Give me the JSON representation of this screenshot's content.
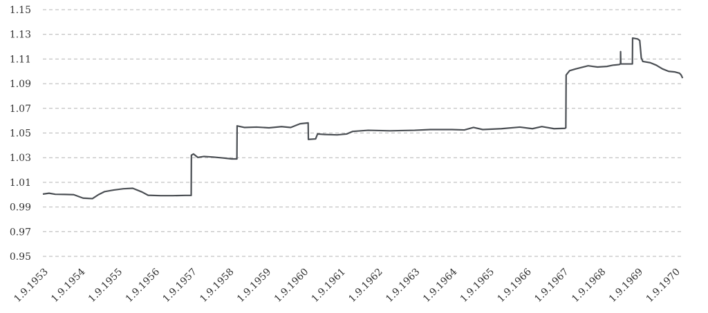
{
  "chart_data": {
    "type": "line",
    "title": "",
    "xlabel": "",
    "ylabel": "",
    "grid": "horizontal-dashed",
    "legend": "none",
    "ylim": [
      0.95,
      1.15
    ],
    "yticks": [
      "1.15",
      "1.13",
      "1.11",
      "1.09",
      "1.07",
      "1.05",
      "1.03",
      "1.01",
      "0.99",
      "0.97",
      "0.95"
    ],
    "xticks": [
      "1.9.1953",
      "1.9.1954",
      "1.9.1955",
      "1.9.1956",
      "1.9.1957",
      "1.9.1958",
      "1.9.1959",
      "1.9.1960",
      "1.9.1961",
      "1.9.1962",
      "1.9.1963",
      "1.9.1964",
      "1.9.1965",
      "1.9.1966",
      "1.9.1967",
      "1.9.1968",
      "1.9.1969",
      "1.9.1970"
    ],
    "xlim": [
      "1953-09-01",
      "1970-11-20"
    ],
    "series": [
      {
        "color": "#4a4e53",
        "points": [
          [
            "1953-09-01",
            1.0005
          ],
          [
            "1953-11-01",
            1.0012
          ],
          [
            "1954-01-01",
            1.0003
          ],
          [
            "1954-04-01",
            1.0002
          ],
          [
            "1954-07-01",
            1.0
          ],
          [
            "1954-10-01",
            0.9972
          ],
          [
            "1955-01-01",
            0.9968
          ],
          [
            "1955-03-01",
            1.0
          ],
          [
            "1955-05-01",
            1.0025
          ],
          [
            "1955-08-01",
            1.0038
          ],
          [
            "1955-11-01",
            1.0048
          ],
          [
            "1956-02-01",
            1.0052
          ],
          [
            "1956-05-01",
            1.0022
          ],
          [
            "1956-07-01",
            0.9995
          ],
          [
            "1956-11-01",
            0.9992
          ],
          [
            "1957-03-01",
            0.9992
          ],
          [
            "1957-07-01",
            0.9994
          ],
          [
            "1957-08-28",
            0.9994
          ],
          [
            "1957-08-30",
            1.032
          ],
          [
            "1957-09-20",
            1.033
          ],
          [
            "1957-11-01",
            1.0302
          ],
          [
            "1958-01-01",
            1.031
          ],
          [
            "1958-04-01",
            1.0305
          ],
          [
            "1958-07-01",
            1.0298
          ],
          [
            "1958-10-01",
            1.029
          ],
          [
            "1958-11-20",
            1.029
          ],
          [
            "1958-11-22",
            1.0558
          ],
          [
            "1959-02-01",
            1.0545
          ],
          [
            "1959-06-01",
            1.0548
          ],
          [
            "1959-10-01",
            1.0542
          ],
          [
            "1960-02-01",
            1.0552
          ],
          [
            "1960-05-01",
            1.0545
          ],
          [
            "1960-08-01",
            1.0575
          ],
          [
            "1960-10-20",
            1.0582
          ],
          [
            "1960-10-22",
            1.0448
          ],
          [
            "1961-01-01",
            1.0452
          ],
          [
            "1961-01-20",
            1.0492
          ],
          [
            "1961-04-01",
            1.0488
          ],
          [
            "1961-08-01",
            1.0485
          ],
          [
            "1961-11-01",
            1.0492
          ],
          [
            "1962-01-01",
            1.0513
          ],
          [
            "1962-06-01",
            1.0522
          ],
          [
            "1963-01-01",
            1.0518
          ],
          [
            "1963-09-01",
            1.0522
          ],
          [
            "1964-02-01",
            1.0528
          ],
          [
            "1964-09-01",
            1.0528
          ],
          [
            "1965-01-01",
            1.0525
          ],
          [
            "1965-04-01",
            1.0545
          ],
          [
            "1965-07-01",
            1.0528
          ],
          [
            "1966-01-01",
            1.0535
          ],
          [
            "1966-07-01",
            1.0548
          ],
          [
            "1966-11-01",
            1.0535
          ],
          [
            "1967-02-01",
            1.0552
          ],
          [
            "1967-06-01",
            1.0535
          ],
          [
            "1967-09-15",
            1.0538
          ],
          [
            "1967-09-25",
            1.0542
          ],
          [
            "1967-09-28",
            1.097
          ],
          [
            "1967-11-01",
            1.1005
          ],
          [
            "1968-01-01",
            1.102
          ],
          [
            "1968-05-01",
            1.1045
          ],
          [
            "1968-08-01",
            1.1035
          ],
          [
            "1968-11-01",
            1.104
          ],
          [
            "1969-01-01",
            1.105
          ],
          [
            "1969-03-01",
            1.1055
          ],
          [
            "1969-03-15",
            1.106
          ],
          [
            "1969-03-16",
            1.116
          ],
          [
            "1969-03-18",
            1.106
          ],
          [
            "1969-06-01",
            1.106
          ],
          [
            "1969-07-10",
            1.106
          ],
          [
            "1969-07-12",
            1.127
          ],
          [
            "1969-09-01",
            1.1262
          ],
          [
            "1969-09-20",
            1.125
          ],
          [
            "1969-10-05",
            1.111
          ],
          [
            "1969-10-20",
            1.108
          ],
          [
            "1970-01-01",
            1.107
          ],
          [
            "1970-03-01",
            1.105
          ],
          [
            "1970-05-01",
            1.102
          ],
          [
            "1970-07-01",
            1.1
          ],
          [
            "1970-09-01",
            1.0995
          ],
          [
            "1970-10-15",
            1.0985
          ],
          [
            "1970-11-01",
            1.097
          ],
          [
            "1970-11-15",
            1.0945
          ]
        ]
      }
    ]
  }
}
